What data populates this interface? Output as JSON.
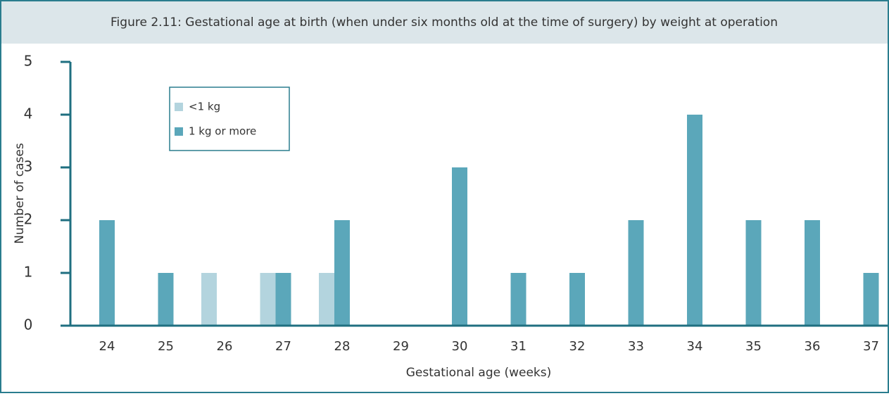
{
  "chart_data": {
    "type": "bar",
    "title": "Figure 2.11: Gestational age at birth (when under six months old at the time of surgery) by weight at operation",
    "x_label": "Gestational age (weeks)",
    "y_label": "Number of cases",
    "categories": [
      "24",
      "25",
      "26",
      "27",
      "28",
      "29",
      "30",
      "31",
      "32",
      "33",
      "34",
      "35",
      "36",
      "37"
    ],
    "series": [
      {
        "name": "<1 kg",
        "color": "#b3d4de",
        "values": [
          0,
          0,
          1,
          1,
          1,
          0,
          0,
          0,
          0,
          0,
          0,
          0,
          0,
          0
        ]
      },
      {
        "name": "1 kg or more",
        "color": "#5ba7ba",
        "values": [
          2,
          1,
          0,
          1,
          2,
          0,
          3,
          1,
          1,
          2,
          4,
          2,
          2,
          1
        ]
      }
    ],
    "ylim": [
      0,
      5
    ],
    "yticks": [
      0,
      1,
      2,
      3,
      4,
      5
    ]
  }
}
